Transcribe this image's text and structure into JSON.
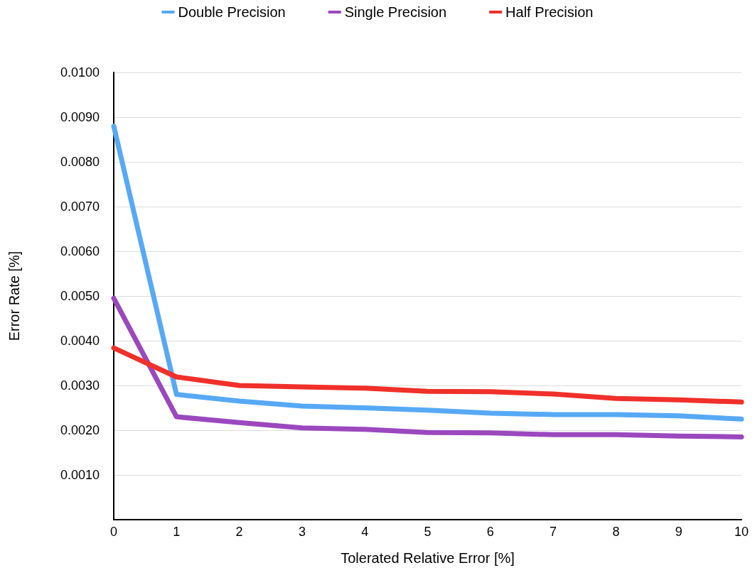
{
  "chart_data": {
    "type": "line",
    "xlabel": "Tolerated Relative Error [%]",
    "ylabel": "Error Rate [%]",
    "x": [
      0,
      1,
      2,
      3,
      4,
      5,
      6,
      7,
      8,
      9,
      10
    ],
    "series": [
      {
        "name": "Double Precision",
        "color": "#57a9f5",
        "values": [
          0.0088,
          0.0028,
          0.00265,
          0.00254,
          0.0025,
          0.00245,
          0.00238,
          0.00235,
          0.00235,
          0.00232,
          0.00225
        ]
      },
      {
        "name": "Single Precision",
        "color": "#9b48be",
        "values": [
          0.00495,
          0.0023,
          0.00217,
          0.00205,
          0.00202,
          0.00195,
          0.00194,
          0.0019,
          0.0019,
          0.00187,
          0.00185
        ]
      },
      {
        "name": "Half Precision",
        "color": "#f0302a",
        "values": [
          0.00384,
          0.00319,
          0.003,
          0.00297,
          0.00294,
          0.00287,
          0.00286,
          0.00281,
          0.00271,
          0.00268,
          0.00263
        ]
      }
    ],
    "xlim": [
      0,
      10
    ],
    "xticks": [
      0,
      1,
      2,
      3,
      4,
      5,
      6,
      7,
      8,
      9,
      10
    ],
    "ylim": [
      0,
      0.01
    ],
    "yticks": [
      {
        "value": 0,
        "label": null
      },
      {
        "value": 0.001,
        "label": "0.0010"
      },
      {
        "value": 0.002,
        "label": "0.0020"
      },
      {
        "value": 0.003,
        "label": "0.0030"
      },
      {
        "value": 0.004,
        "label": "0.0040"
      },
      {
        "value": 0.005,
        "label": "0.0050"
      },
      {
        "value": 0.006,
        "label": "0.0060"
      },
      {
        "value": 0.007,
        "label": "0.0070"
      },
      {
        "value": 0.008,
        "label": "0.0080"
      },
      {
        "value": 0.009,
        "label": "0.0090"
      },
      {
        "value": 0.01,
        "label": "0.0100"
      }
    ],
    "grid": "y",
    "legend": "top",
    "marker": "none",
    "line_style": "solid"
  }
}
